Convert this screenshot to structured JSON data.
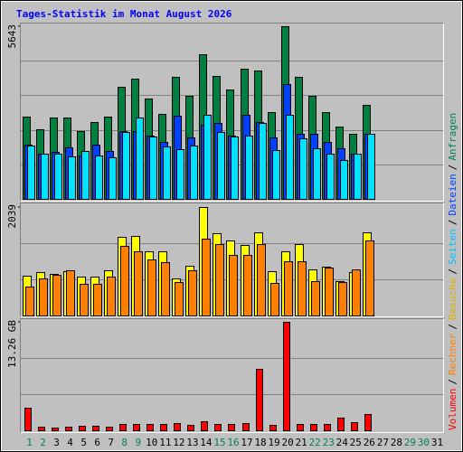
{
  "chart_data": {
    "type": "bar",
    "title": "Tages-Statistik im Monat August 2026",
    "categories": [
      "1",
      "2",
      "3",
      "4",
      "5",
      "6",
      "7",
      "8",
      "9",
      "10",
      "11",
      "12",
      "13",
      "14",
      "15",
      "16",
      "17",
      "18",
      "19",
      "20",
      "21",
      "22",
      "23",
      "24",
      "25",
      "26",
      "27",
      "28",
      "29",
      "30",
      "31"
    ],
    "category_colors": [
      "#00805c",
      "#00805c",
      "#000000",
      "#000000",
      "#000000",
      "#000000",
      "#000000",
      "#00805c",
      "#00805c",
      "#000000",
      "#000000",
      "#000000",
      "#000000",
      "#000000",
      "#00805c",
      "#00805c",
      "#000000",
      "#000000",
      "#000000",
      "#000000",
      "#000000",
      "#00805c",
      "#00805c",
      "#000000",
      "#000000",
      "#000000",
      "#000000",
      "#000000",
      "#00805c",
      "#00805c",
      "#000000"
    ],
    "legend_separator": "/",
    "panels": [
      {
        "ylim": [
          0,
          5643
        ],
        "yticks": [
          5643
        ],
        "series": [
          {
            "name": "Anfragen",
            "color": "#008040",
            "text_color": "#00805c",
            "values": [
              2688,
              2275,
              2659,
              2659,
              2216,
              2511,
              2688,
              3663,
              3929,
              3279,
              2777,
              3988,
              3368,
              4727,
              4018,
              3575,
              4254,
              4195,
              2836,
              5643,
              3988,
              3368,
              2836,
              2363,
              2127,
              3072,
              0,
              0,
              0,
              0,
              0
            ]
          },
          {
            "name": "Dateien",
            "color": "#0040ff",
            "text_color": "#0040ff",
            "values": [
              1772,
              1477,
              1536,
              1684,
              1418,
              1772,
              1566,
              2216,
              2216,
              2068,
              1861,
              2718,
              2009,
              2422,
              2481,
              2068,
              2747,
              2511,
              2009,
              3752,
              2127,
              2127,
              1861,
              1654,
              1477,
              2127,
              0,
              0,
              0,
              0,
              0
            ]
          },
          {
            "name": "Seiten",
            "color": "#00e0ff",
            "text_color": "#00c0ff",
            "values": [
              1743,
              1477,
              1477,
              1388,
              1566,
              1418,
              1359,
              2186,
              2659,
              2038,
              1713,
              1625,
              1743,
              2747,
              2186,
              2038,
              2068,
              2481,
              1595,
              2747,
              1979,
              1654,
              1477,
              1270,
              1477,
              2127,
              0,
              0,
              0,
              0,
              0
            ]
          }
        ]
      },
      {
        "ylim": [
          0,
          2039
        ],
        "yticks": [
          2039
        ],
        "series": [
          {
            "name": "Besuche",
            "color": "#ffff00",
            "text_color": "#e0b000",
            "values": [
              748,
              816,
              782,
              833,
              731,
              731,
              850,
              1478,
              1495,
              1206,
              1206,
              697,
              934,
              2039,
              1546,
              1410,
              1325,
              1563,
              833,
              1206,
              1342,
              866,
              917,
              646,
              816,
              1563,
              0,
              0,
              0,
              0,
              0
            ]
          },
          {
            "name": "Rechner",
            "color": "#ff8000",
            "text_color": "#ff8000",
            "values": [
              544,
              697,
              765,
              850,
              595,
              595,
              731,
              1308,
              1206,
              1053,
              1002,
              629,
              850,
              1444,
              1342,
              1138,
              1138,
              1342,
              612,
              1019,
              1019,
              646,
              900,
              629,
              866,
              1410,
              0,
              0,
              0,
              0,
              0
            ]
          }
        ]
      },
      {
        "ylim": [
          0,
          13.26
        ],
        "yticks": [
          {
            "value": 13.26,
            "label": "13.26 GB"
          }
        ],
        "series": [
          {
            "name": "Volumen",
            "color": "#ff0000",
            "text_color": "#ff0000",
            "values": [
              2.76,
              0.44,
              0.33,
              0.44,
              0.55,
              0.55,
              0.44,
              0.77,
              0.77,
              0.77,
              0.77,
              0.88,
              0.66,
              1.11,
              0.77,
              0.77,
              0.88,
              7.51,
              0.66,
              13.26,
              0.77,
              0.77,
              0.77,
              1.55,
              0.99,
              1.99,
              0,
              0,
              0,
              0,
              0
            ]
          }
        ]
      }
    ]
  }
}
